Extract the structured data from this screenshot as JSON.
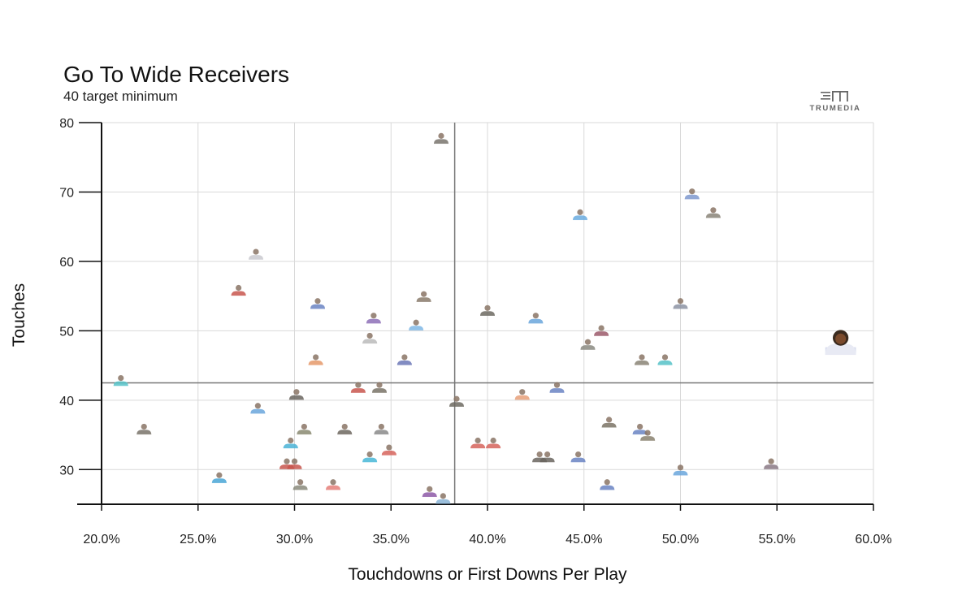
{
  "header": {
    "title": "Go To Wide Receivers",
    "subtitle": "40 target minimum"
  },
  "brand": {
    "logo_text": "TRUMEDIA",
    "logo_icon": "trumedia-logo-icon"
  },
  "chart_data": {
    "type": "scatter",
    "title": "Go To Wide Receivers",
    "subtitle": "40 target minimum",
    "xlabel": "Touchdowns or First Downs Per Play",
    "ylabel": "Touches",
    "xlim": [
      0.2,
      0.6
    ],
    "ylim": [
      25,
      80
    ],
    "x_ticks": [
      0.2,
      0.25,
      0.3,
      0.35,
      0.4,
      0.45,
      0.5,
      0.55,
      0.6
    ],
    "x_tick_labels": [
      "20.0%",
      "25.0%",
      "30.0%",
      "35.0%",
      "40.0%",
      "45.0%",
      "50.0%",
      "55.0%",
      "60.0%"
    ],
    "y_ticks": [
      30,
      40,
      50,
      60,
      70,
      80
    ],
    "y_tick_labels": [
      "30",
      "40",
      "50",
      "60",
      "70",
      "80"
    ],
    "grid": true,
    "reference_lines": {
      "x": 0.383,
      "y": 42.5
    },
    "marker": "player-headshot-icon",
    "highlight_color": "#3a2a1e",
    "points": [
      {
        "x": 0.376,
        "y": 77.5,
        "color": "#7a756e"
      },
      {
        "x": 0.506,
        "y": 69.5,
        "color": "#7f9ad0"
      },
      {
        "x": 0.517,
        "y": 66.8,
        "color": "#8a8478"
      },
      {
        "x": 0.448,
        "y": 66.5,
        "color": "#6aace0"
      },
      {
        "x": 0.28,
        "y": 60.8,
        "color": "#c9c9cf"
      },
      {
        "x": 0.271,
        "y": 55.6,
        "color": "#c8564e"
      },
      {
        "x": 0.367,
        "y": 54.7,
        "color": "#8a7c6c"
      },
      {
        "x": 0.312,
        "y": 53.7,
        "color": "#6a84c4"
      },
      {
        "x": 0.5,
        "y": 53.7,
        "color": "#8d93a4"
      },
      {
        "x": 0.4,
        "y": 52.7,
        "color": "#6e6a62"
      },
      {
        "x": 0.341,
        "y": 51.6,
        "color": "#8e70b8"
      },
      {
        "x": 0.425,
        "y": 51.6,
        "color": "#6aa6dc"
      },
      {
        "x": 0.363,
        "y": 50.6,
        "color": "#80b8e6"
      },
      {
        "x": 0.459,
        "y": 49.8,
        "color": "#9c5a6a"
      },
      {
        "x": 0.339,
        "y": 48.7,
        "color": "#bcbcbc"
      },
      {
        "x": 0.452,
        "y": 47.8,
        "color": "#8a8a82"
      },
      {
        "x": 0.583,
        "y": 48.0,
        "color": "#3a2a1e",
        "highlight": true
      },
      {
        "x": 0.311,
        "y": 45.6,
        "color": "#e69a6a"
      },
      {
        "x": 0.357,
        "y": 45.6,
        "color": "#6d78b8"
      },
      {
        "x": 0.48,
        "y": 45.6,
        "color": "#8a8476"
      },
      {
        "x": 0.492,
        "y": 45.6,
        "color": "#56c3c8"
      },
      {
        "x": 0.21,
        "y": 42.6,
        "color": "#56c3c8"
      },
      {
        "x": 0.333,
        "y": 41.6,
        "color": "#c8564e"
      },
      {
        "x": 0.344,
        "y": 41.6,
        "color": "#7a7468"
      },
      {
        "x": 0.436,
        "y": 41.6,
        "color": "#6a84c4"
      },
      {
        "x": 0.418,
        "y": 40.6,
        "color": "#e8a07a"
      },
      {
        "x": 0.301,
        "y": 40.6,
        "color": "#6a6660"
      },
      {
        "x": 0.384,
        "y": 39.6,
        "color": "#6e6a62"
      },
      {
        "x": 0.281,
        "y": 38.6,
        "color": "#6aa6dc"
      },
      {
        "x": 0.463,
        "y": 36.6,
        "color": "#7c7466"
      },
      {
        "x": 0.222,
        "y": 35.6,
        "color": "#7a746a"
      },
      {
        "x": 0.305,
        "y": 35.6,
        "color": "#8a8a72"
      },
      {
        "x": 0.326,
        "y": 35.6,
        "color": "#6e6860"
      },
      {
        "x": 0.345,
        "y": 35.6,
        "color": "#8a8a8a"
      },
      {
        "x": 0.479,
        "y": 35.6,
        "color": "#6a84c4"
      },
      {
        "x": 0.483,
        "y": 34.7,
        "color": "#8a8270"
      },
      {
        "x": 0.298,
        "y": 33.6,
        "color": "#4bb3d6"
      },
      {
        "x": 0.395,
        "y": 33.6,
        "color": "#d6645c"
      },
      {
        "x": 0.403,
        "y": 33.6,
        "color": "#d6645c"
      },
      {
        "x": 0.349,
        "y": 32.6,
        "color": "#d6645c"
      },
      {
        "x": 0.339,
        "y": 31.6,
        "color": "#48b8d8"
      },
      {
        "x": 0.427,
        "y": 31.6,
        "color": "#6a6660"
      },
      {
        "x": 0.431,
        "y": 31.6,
        "color": "#6a6660"
      },
      {
        "x": 0.447,
        "y": 31.6,
        "color": "#6a84c4"
      },
      {
        "x": 0.296,
        "y": 30.6,
        "color": "#c8564e"
      },
      {
        "x": 0.3,
        "y": 30.6,
        "color": "#c8564e"
      },
      {
        "x": 0.547,
        "y": 30.6,
        "color": "#8a7a86"
      },
      {
        "x": 0.5,
        "y": 29.7,
        "color": "#6aa6dc"
      },
      {
        "x": 0.261,
        "y": 28.6,
        "color": "#4aa6d6"
      },
      {
        "x": 0.303,
        "y": 27.6,
        "color": "#8a8a7c"
      },
      {
        "x": 0.32,
        "y": 27.6,
        "color": "#e6807a"
      },
      {
        "x": 0.462,
        "y": 27.6,
        "color": "#6a84c4"
      },
      {
        "x": 0.37,
        "y": 26.6,
        "color": "#8e5aa8"
      },
      {
        "x": 0.377,
        "y": 25.6,
        "color": "#8ab4d6"
      }
    ]
  }
}
